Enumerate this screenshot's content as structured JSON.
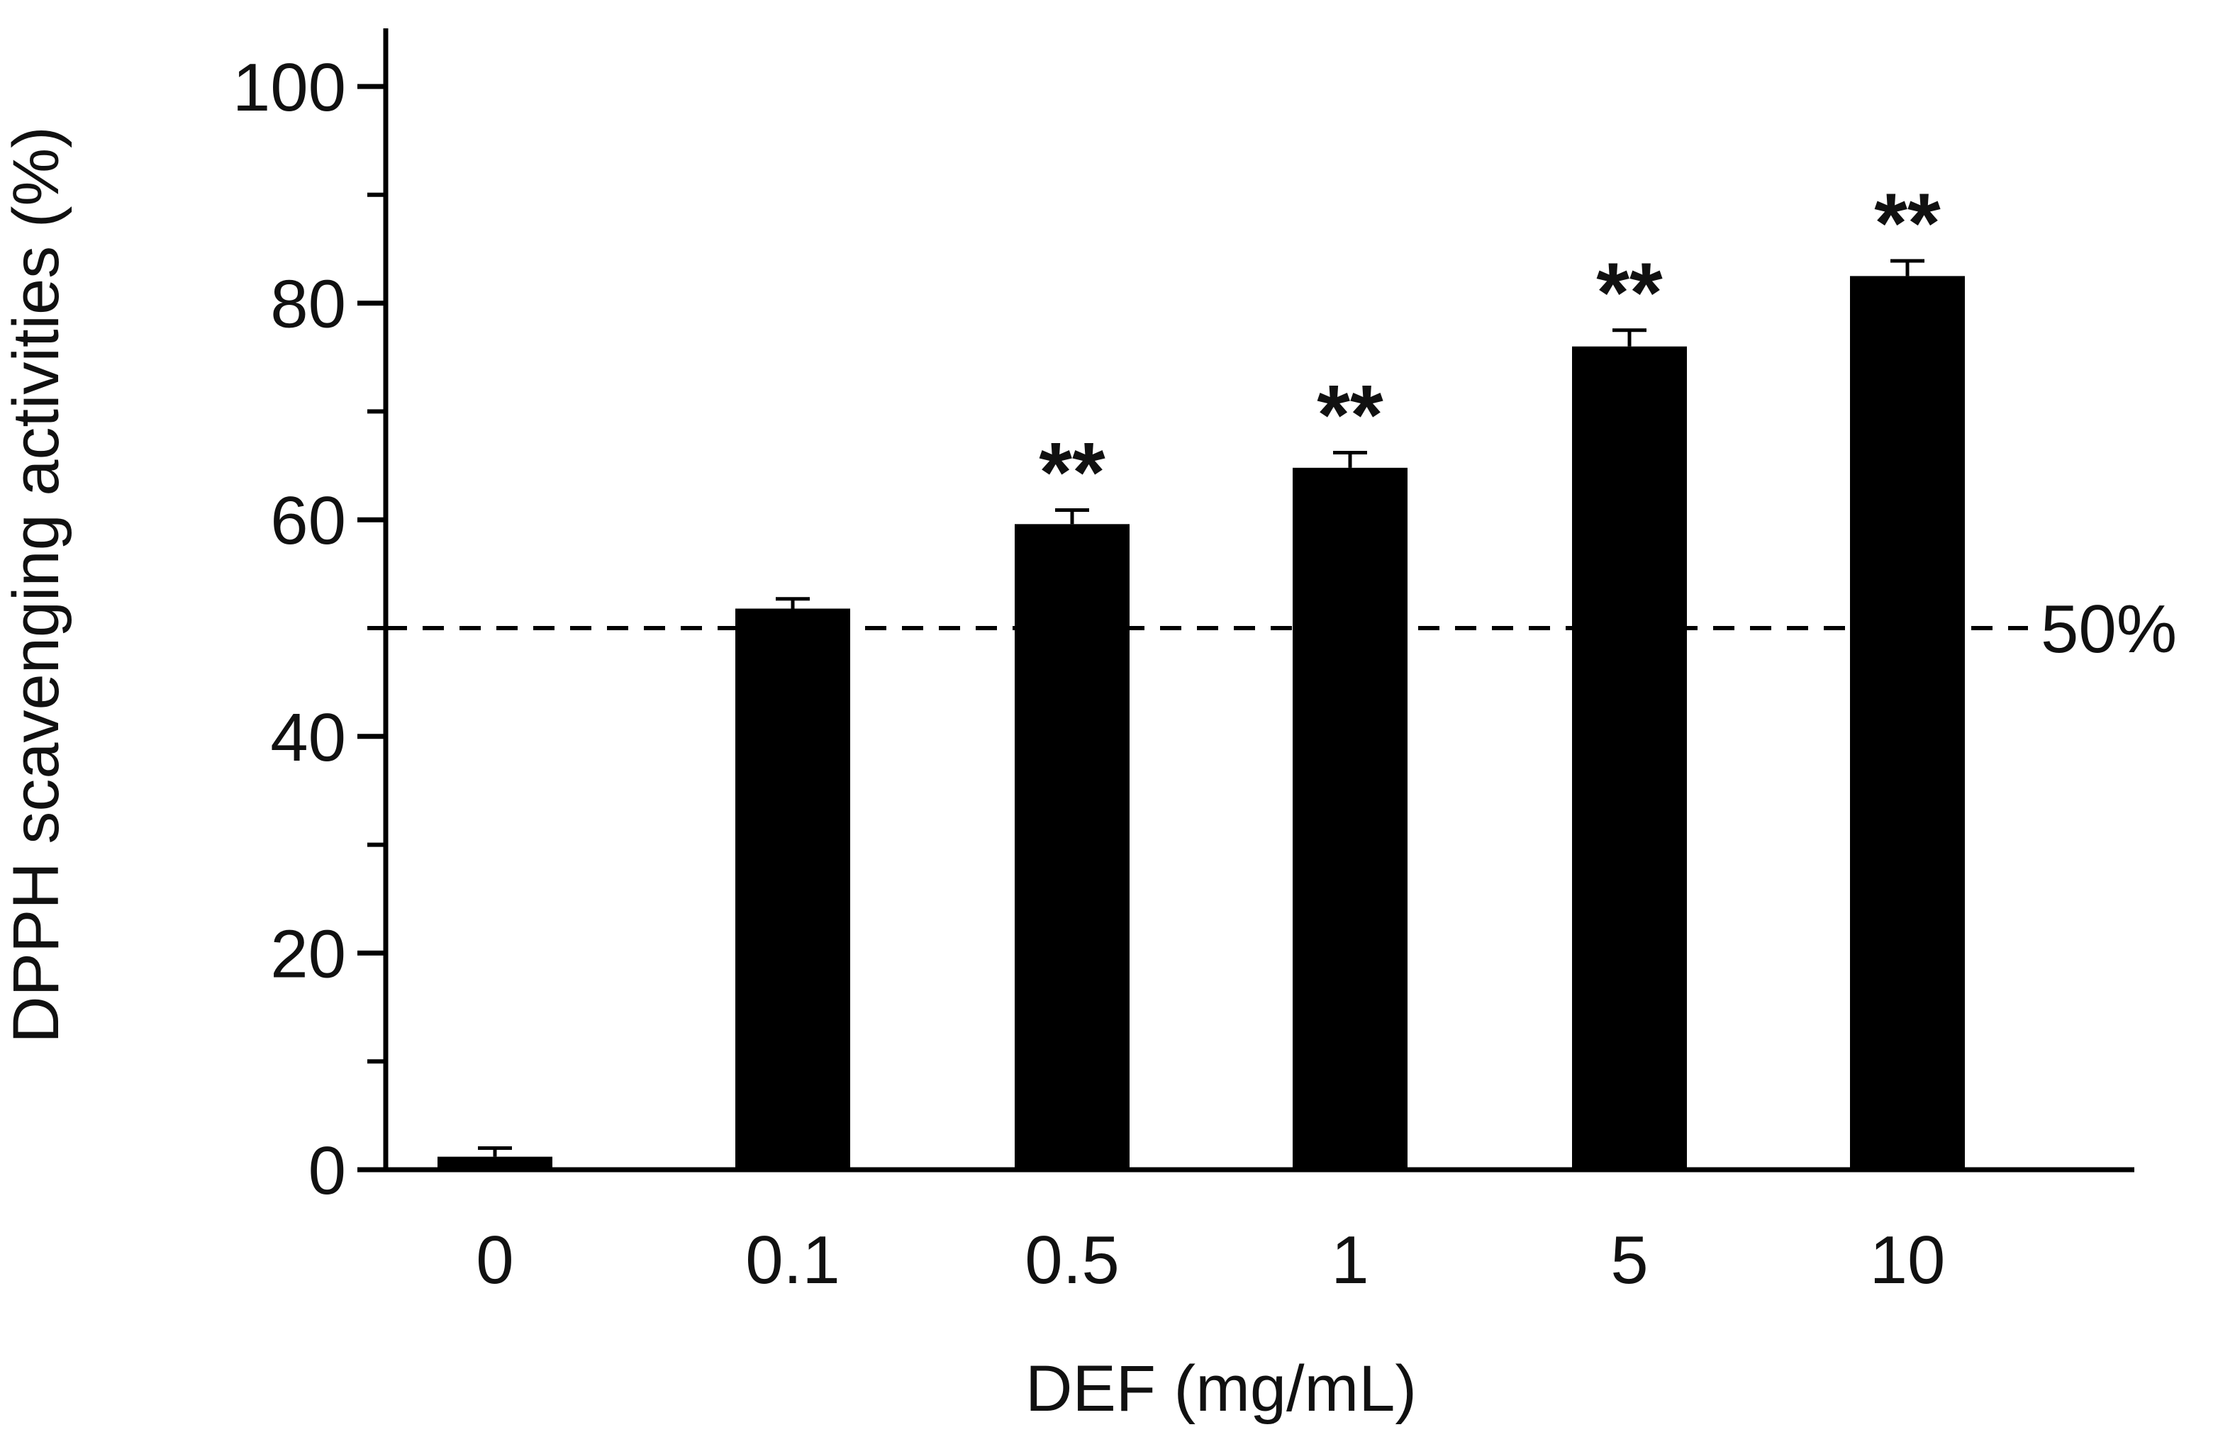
{
  "chart_data": {
    "type": "bar",
    "title": "",
    "xlabel": "DEF (mg/mL)",
    "ylabel": "DPPH scavenging activities (%)",
    "ylim": [
      0,
      105
    ],
    "yticks": [
      0,
      20,
      40,
      60,
      80,
      100
    ],
    "yticks_minor": [
      10,
      30,
      50,
      70,
      90
    ],
    "categories": [
      "0",
      "0.1",
      "0.5",
      "1",
      "5",
      "10"
    ],
    "values": [
      1.2,
      51.8,
      59.6,
      64.8,
      76.0,
      82.5
    ],
    "errors": [
      0.8,
      0.9,
      1.3,
      1.4,
      1.5,
      1.4
    ],
    "significance": [
      "",
      "",
      "**",
      "**",
      "**",
      "**"
    ],
    "reference_line": {
      "value": 50,
      "label": "50%",
      "style": "dashed"
    },
    "colors": {
      "bar": "#000000",
      "axis": "#000000",
      "text": "#111111"
    }
  }
}
